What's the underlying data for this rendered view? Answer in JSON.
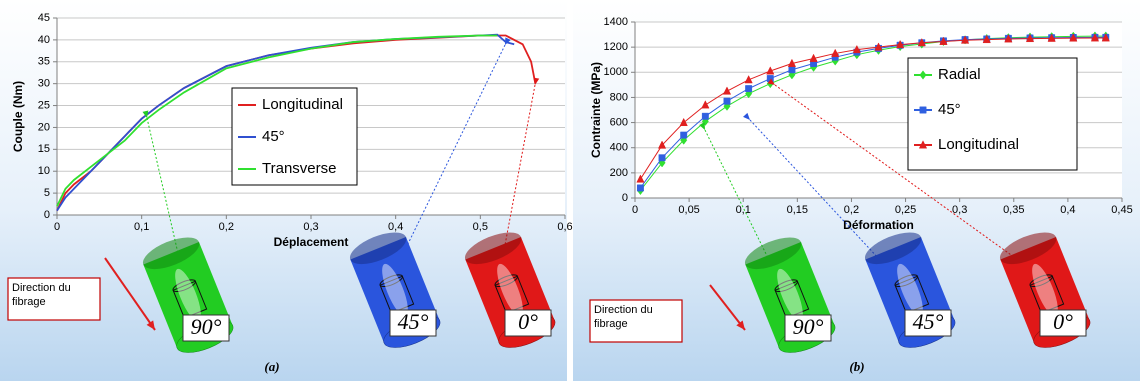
{
  "chart_data": [
    {
      "type": "line",
      "panel_label": "(a)",
      "x_label": "Déplacement",
      "y_label": "Couple (Nm)",
      "xlim": [
        0,
        0.6
      ],
      "xticks": [
        0,
        {
          "value": 0.1,
          "label": "0,1"
        },
        {
          "value": 0.2,
          "label": "0,2"
        },
        {
          "value": 0.3,
          "label": "0,3"
        },
        {
          "value": 0.4,
          "label": "0,4"
        },
        {
          "value": 0.5,
          "label": "0,5"
        },
        {
          "value": 0.6,
          "label": "0,6"
        }
      ],
      "ylim": [
        0,
        45
      ],
      "yticks": [
        0,
        5,
        10,
        15,
        20,
        25,
        30,
        35,
        40,
        45
      ],
      "grid": true,
      "series": [
        {
          "name": "Longitudinal",
          "color": "#e02020",
          "x": [
            0,
            0.01,
            0.02,
            0.04,
            0.06,
            0.08,
            0.1,
            0.12,
            0.15,
            0.2,
            0.25,
            0.3,
            0.35,
            0.4,
            0.45,
            0.5,
            0.53,
            0.55,
            0.56,
            0.565
          ],
          "values": [
            1,
            5,
            7,
            10,
            14,
            18,
            22,
            25,
            29,
            34,
            36.5,
            38,
            39.2,
            40,
            40.5,
            41,
            41,
            39,
            35,
            30
          ]
        },
        {
          "name": "45°",
          "color": "#3050d0",
          "x": [
            0,
            0.01,
            0.02,
            0.04,
            0.06,
            0.08,
            0.1,
            0.12,
            0.15,
            0.2,
            0.25,
            0.3,
            0.35,
            0.4,
            0.45,
            0.5,
            0.52,
            0.53,
            0.54
          ],
          "values": [
            1,
            4,
            6,
            10,
            14,
            18,
            22,
            25,
            29,
            34,
            36.5,
            38.2,
            39.5,
            40.2,
            40.6,
            41,
            41.2,
            39.5,
            39
          ]
        },
        {
          "name": "Transverse",
          "color": "#30e030",
          "x": [
            0,
            0.01,
            0.02,
            0.04,
            0.06,
            0.08,
            0.1,
            0.12,
            0.15,
            0.2,
            0.25,
            0.3,
            0.35,
            0.4,
            0.45,
            0.5,
            0.52
          ],
          "values": [
            2,
            6,
            8,
            11,
            14,
            17,
            21,
            24,
            28,
            33.5,
            36,
            38,
            39.5,
            40.2,
            40.7,
            41,
            41
          ]
        }
      ],
      "direction_label": "Direction du fibrage",
      "cylinder_labels": [
        "90°",
        "45°",
        "0°"
      ]
    },
    {
      "type": "line",
      "panel_label": "(b)",
      "x_label": "Déformation",
      "y_label": "Contrainte (MPa)",
      "xlim": [
        0,
        0.45
      ],
      "xticks": [
        0,
        {
          "value": 0.05,
          "label": "0,05"
        },
        {
          "value": 0.1,
          "label": "0,1"
        },
        {
          "value": 0.15,
          "label": "0,15"
        },
        {
          "value": 0.2,
          "label": "0,2"
        },
        {
          "value": 0.25,
          "label": "0,25"
        },
        {
          "value": 0.3,
          "label": "0,3"
        },
        {
          "value": 0.35,
          "label": "0,35"
        },
        {
          "value": 0.4,
          "label": "0,4"
        },
        {
          "value": 0.45,
          "label": "0,45"
        }
      ],
      "ylim": [
        0,
        1400
      ],
      "yticks": [
        0,
        200,
        400,
        600,
        800,
        1000,
        1200,
        1400
      ],
      "grid": true,
      "series": [
        {
          "name": "Radial",
          "color": "#30e030",
          "marker": "diamond",
          "x": [
            0.005,
            0.025,
            0.045,
            0.065,
            0.085,
            0.105,
            0.125,
            0.145,
            0.165,
            0.185,
            0.205,
            0.225,
            0.245,
            0.265,
            0.285,
            0.305,
            0.325,
            0.345,
            0.365,
            0.385,
            0.405,
            0.425,
            0.435
          ],
          "values": [
            60,
            280,
            460,
            610,
            730,
            830,
            910,
            980,
            1040,
            1090,
            1140,
            1175,
            1205,
            1225,
            1245,
            1258,
            1268,
            1275,
            1280,
            1283,
            1286,
            1288,
            1288
          ]
        },
        {
          "name": "45°",
          "color": "#3060e0",
          "marker": "square",
          "x": [
            0.005,
            0.025,
            0.045,
            0.065,
            0.085,
            0.105,
            0.125,
            0.145,
            0.165,
            0.185,
            0.205,
            0.225,
            0.245,
            0.265,
            0.285,
            0.305,
            0.325,
            0.345,
            0.365,
            0.385,
            0.405,
            0.425,
            0.435
          ],
          "values": [
            80,
            320,
            500,
            650,
            770,
            870,
            950,
            1020,
            1070,
            1120,
            1160,
            1190,
            1215,
            1235,
            1250,
            1260,
            1265,
            1270,
            1273,
            1275,
            1277,
            1278,
            1278
          ]
        },
        {
          "name": "Longitudinal",
          "color": "#e02020",
          "marker": "triangle",
          "x": [
            0.005,
            0.025,
            0.045,
            0.065,
            0.085,
            0.105,
            0.125,
            0.145,
            0.165,
            0.185,
            0.205,
            0.225,
            0.245,
            0.265,
            0.285,
            0.305,
            0.325,
            0.345,
            0.365,
            0.385,
            0.405,
            0.425,
            0.435
          ],
          "values": [
            150,
            420,
            600,
            740,
            850,
            940,
            1010,
            1070,
            1110,
            1150,
            1180,
            1200,
            1220,
            1235,
            1245,
            1255,
            1260,
            1265,
            1268,
            1270,
            1272,
            1273,
            1273
          ]
        }
      ],
      "direction_label": "Direction du fibrage",
      "cylinder_labels": [
        "90°",
        "45°",
        "0°"
      ]
    }
  ]
}
